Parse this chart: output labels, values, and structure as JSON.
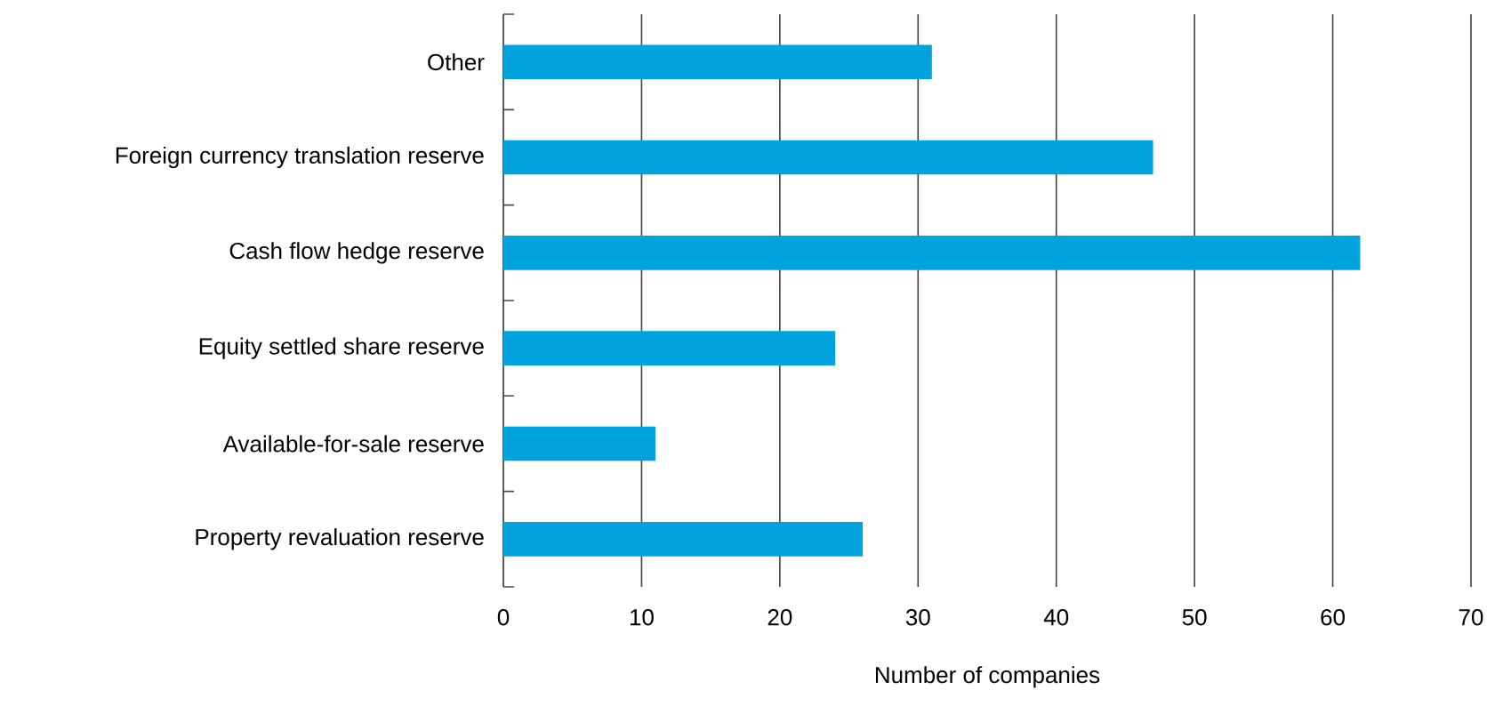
{
  "chart_data": {
    "type": "bar",
    "orientation": "horizontal",
    "xlabel": "Number of companies",
    "categories": [
      "Other",
      "Foreign currency translation reserve",
      "Cash flow hedge reserve",
      "Equity settled share reserve",
      "Available-for-sale reserve",
      "Property revaluation reserve"
    ],
    "values": [
      31,
      47,
      62,
      24,
      11,
      26
    ],
    "color": "#00a3de",
    "xlim": [
      0,
      70
    ],
    "xticks": [
      0,
      10,
      20,
      30,
      40,
      50,
      60,
      70
    ],
    "grid": "x"
  }
}
